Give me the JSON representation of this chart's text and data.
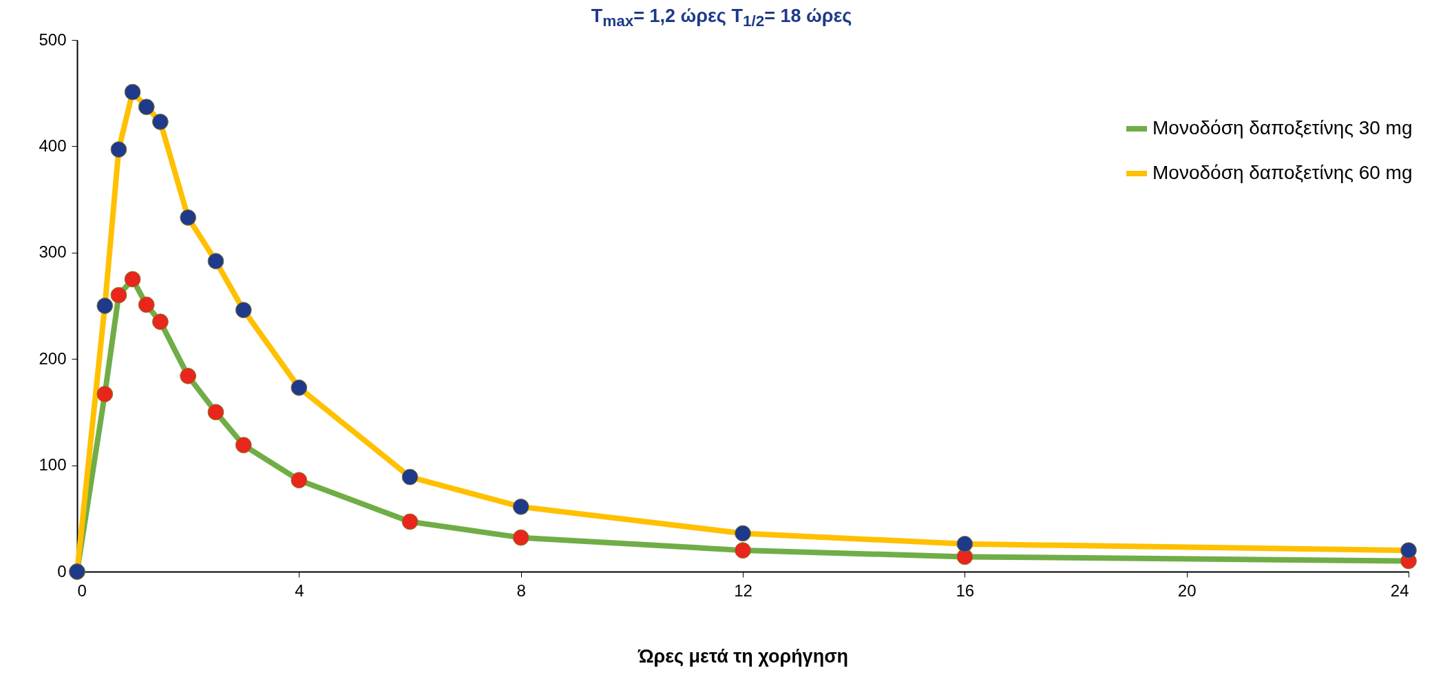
{
  "chart_data": {
    "type": "line",
    "title": "T$_{max}$= 1,2 ώρες T$_{1/2}$= 18 ώρες",
    "xlabel": "Ώρες μετά τη χορήγηση",
    "xlim": [
      0,
      24
    ],
    "xticks": [
      0,
      4,
      8,
      12,
      16,
      20,
      24
    ],
    "ylim": [
      0,
      500
    ],
    "yticks": [
      0,
      100,
      200,
      300,
      400,
      500
    ],
    "grid": false,
    "legend": "top right",
    "marker": "circle",
    "line_style": "solid",
    "series": [
      {
        "name": "Μονοδόση δαποξετίνης 30 mg",
        "color": "#70ad47",
        "x": [
          0,
          0.5,
          0.75,
          1,
          1.25,
          1.5,
          2,
          2.5,
          3,
          4,
          6,
          8,
          12,
          16,
          24
        ],
        "values": [
          0,
          167,
          260,
          275,
          251,
          235,
          184,
          150,
          119,
          86,
          47,
          32,
          20,
          14,
          10
        ],
        "colors": [
          "#e8261c",
          "#e8261c",
          "#e8261c",
          "#e8261c",
          "#e8261c",
          "#e8261c",
          "#e8261c",
          "#e8261c",
          "#e8261c",
          "#e8261c",
          "#e8261c",
          "#e8261c",
          "#e8261c",
          "#e8261c",
          "#e8261c"
        ]
      },
      {
        "name": "Μονοδόση δαποξετίνης 60 mg",
        "color": "#ffc000",
        "x": [
          0,
          0.5,
          0.75,
          1,
          1.25,
          1.5,
          2,
          2.5,
          3,
          4,
          6,
          8,
          12,
          16,
          24
        ],
        "values": [
          0,
          250,
          397,
          451,
          437,
          423,
          333,
          292,
          246,
          173,
          89,
          61,
          36,
          26,
          20
        ],
        "colors": [
          "#1f3a8a",
          "#1f3a8a",
          "#1f3a8a",
          "#1f3a8a",
          "#1f3a8a",
          "#1f3a8a",
          "#1f3a8a",
          "#1f3a8a",
          "#1f3a8a",
          "#1f3a8a",
          "#1f3a8a",
          "#1f3a8a",
          "#1f3a8a",
          "#1f3a8a",
          "#1f3a8a"
        ]
      }
    ]
  }
}
